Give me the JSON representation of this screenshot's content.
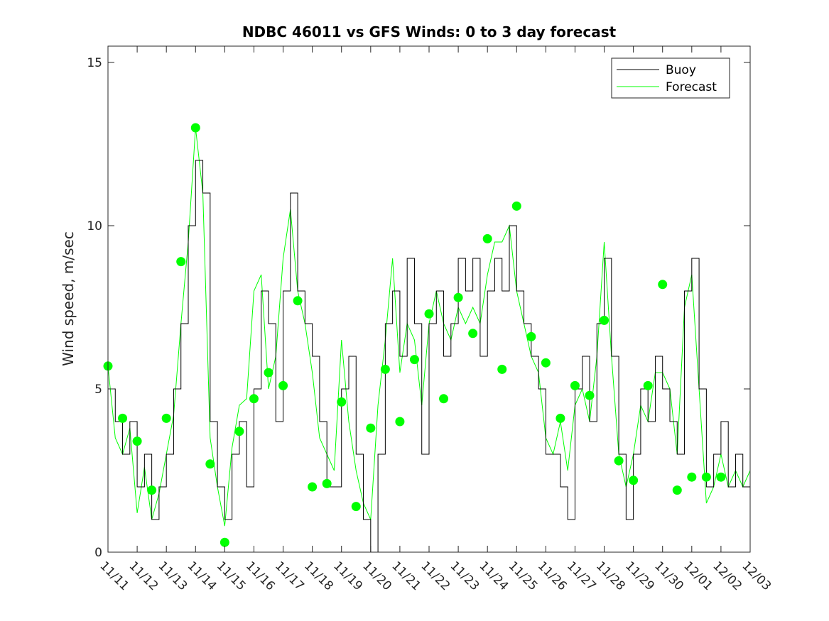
{
  "chart_data": {
    "type": "line",
    "title": "NDBC 46011 vs GFS Winds: 0 to 3 day forecast",
    "xlabel": "",
    "ylabel": "Wind speed, m/sec",
    "ylim": [
      0,
      15.5
    ],
    "yticks": [
      "0",
      "5",
      "10",
      "15"
    ],
    "ytick_values": [
      0,
      5,
      10,
      15
    ],
    "xlim": [
      0,
      22
    ],
    "xticks": [
      "11/11",
      "11/12",
      "11/13",
      "11/14",
      "11/15",
      "11/16",
      "11/17",
      "11/18",
      "11/19",
      "11/20",
      "11/21",
      "11/22",
      "11/23",
      "11/24",
      "11/25",
      "11/26",
      "11/27",
      "11/28",
      "11/29",
      "11/30",
      "12/01",
      "12/02",
      "12/03"
    ],
    "legend": {
      "location": "top-right",
      "entries": [
        "Buoy",
        "Forecast"
      ]
    },
    "colors": {
      "buoy": "#000000",
      "forecast": "#00ff00",
      "axes": "#262626"
    },
    "series": [
      {
        "name": "Buoy",
        "x": [
          0,
          0.25,
          0.5,
          0.75,
          1,
          1.25,
          1.5,
          1.75,
          2,
          2.25,
          2.5,
          2.75,
          3,
          3.25,
          3.5,
          3.75,
          4,
          4.25,
          4.5,
          4.75,
          5,
          5.25,
          5.5,
          5.75,
          6,
          6.25,
          6.5,
          6.75,
          7,
          7.25,
          7.5,
          7.75,
          8,
          8.25,
          8.5,
          8.75,
          9,
          9.25,
          9.5,
          9.75,
          10,
          10.25,
          10.5,
          10.75,
          11,
          11.25,
          11.5,
          11.75,
          12,
          12.25,
          12.5,
          12.75,
          13,
          13.25,
          13.5,
          13.75,
          14,
          14.25,
          14.5,
          14.75,
          15,
          15.25,
          15.5,
          15.75,
          16,
          16.25,
          16.5,
          16.75,
          17,
          17.25,
          17.5,
          17.75,
          18,
          18.25,
          18.5,
          18.75,
          19,
          19.25,
          19.5,
          19.75,
          20,
          20.25,
          20.5,
          20.75,
          21,
          21.25,
          21.5,
          21.75,
          22
        ],
        "values": [
          5,
          4,
          3,
          4,
          2,
          3,
          1,
          2,
          3,
          5,
          7,
          10,
          12,
          11,
          4,
          2,
          1,
          3,
          4,
          2,
          5,
          8,
          7,
          4,
          8,
          11,
          8,
          7,
          6,
          4,
          2,
          2,
          5,
          6,
          3,
          1,
          0,
          3,
          7,
          8,
          6,
          9,
          7,
          3,
          7,
          8,
          6,
          7,
          9,
          8,
          9,
          6,
          8,
          9,
          8,
          10,
          8,
          7,
          6,
          5,
          3,
          3,
          2,
          1,
          5,
          6,
          4,
          7,
          9,
          6,
          3,
          1,
          3,
          5,
          4,
          6,
          5,
          4,
          3,
          8,
          9,
          5,
          2,
          3,
          4,
          2,
          3,
          2,
          2
        ]
      },
      {
        "name": "Forecast",
        "x": [
          0,
          0.25,
          0.5,
          0.75,
          1,
          1.25,
          1.5,
          1.75,
          2,
          2.25,
          2.5,
          2.75,
          3,
          3.25,
          3.5,
          3.75,
          4,
          4.25,
          4.5,
          4.75,
          5,
          5.25,
          5.5,
          5.75,
          6,
          6.25,
          6.5,
          6.75,
          7,
          7.25,
          7.5,
          7.75,
          8,
          8.25,
          8.5,
          8.75,
          9,
          9.25,
          9.5,
          9.75,
          10,
          10.25,
          10.5,
          10.75,
          11,
          11.25,
          11.5,
          11.75,
          12,
          12.25,
          12.5,
          12.75,
          13,
          13.25,
          13.5,
          13.75,
          14,
          14.25,
          14.5,
          14.75,
          15,
          15.25,
          15.5,
          15.75,
          16,
          16.25,
          16.5,
          16.75,
          17,
          17.25,
          17.5,
          17.75,
          18,
          18.25,
          18.5,
          18.75,
          19,
          19.25,
          19.5,
          19.75,
          20,
          20.25,
          20.5,
          20.75,
          21,
          21.25,
          21.5,
          21.75,
          22
        ],
        "values": [
          5.7,
          3.5,
          3.0,
          3.8,
          1.2,
          2.6,
          1.0,
          1.8,
          3.0,
          4.2,
          7.0,
          9.5,
          13.0,
          11.0,
          3.5,
          2.0,
          0.8,
          3.2,
          4.5,
          4.7,
          8.0,
          8.5,
          5.0,
          6.0,
          9.0,
          10.5,
          8.0,
          7.0,
          5.5,
          3.5,
          3.0,
          2.5,
          6.5,
          4.0,
          2.5,
          1.5,
          1.0,
          4.5,
          6.5,
          9.0,
          5.5,
          7.0,
          6.5,
          4.5,
          7.0,
          8.0,
          7.0,
          6.5,
          7.5,
          7.0,
          7.5,
          7.0,
          8.5,
          9.5,
          9.5,
          10.0,
          8.0,
          7.0,
          6.0,
          5.5,
          3.5,
          3.0,
          4.0,
          2.5,
          4.5,
          5.0,
          4.0,
          6.0,
          9.5,
          6.0,
          3.0,
          2.0,
          3.0,
          4.5,
          4.0,
          5.5,
          5.5,
          5.0,
          3.0,
          7.5,
          8.5,
          5.0,
          1.5,
          2.0,
          3.0,
          2.0,
          2.5,
          2.0,
          2.5
        ]
      }
    ],
    "forecast_points": {
      "x": [
        0.0,
        0.5,
        1.0,
        1.5,
        2.0,
        2.5,
        3.0,
        3.5,
        4.0,
        4.5,
        5.0,
        5.5,
        6.0,
        6.5,
        7.0,
        7.5,
        8.0,
        8.5,
        9.0,
        9.5,
        10.0,
        10.5,
        11.0,
        11.5,
        12.0,
        12.5,
        13.0,
        13.5,
        14.0,
        14.5,
        15.0,
        15.5,
        16.0,
        16.5,
        17.0,
        17.5,
        18.0,
        18.5,
        19.0,
        19.5,
        20.0,
        20.5,
        21.0
      ],
      "values": [
        5.7,
        4.1,
        3.4,
        1.9,
        4.1,
        8.9,
        13.0,
        2.7,
        0.3,
        3.7,
        4.7,
        5.5,
        5.1,
        7.7,
        2.0,
        2.1,
        4.6,
        1.4,
        3.8,
        5.6,
        4.0,
        5.9,
        7.3,
        4.7,
        7.8,
        6.7,
        9.6,
        5.6,
        10.6,
        6.6,
        5.8,
        4.1,
        5.1,
        4.8,
        7.1,
        2.8,
        2.2,
        5.1,
        8.2,
        1.9,
        2.3,
        2.3,
        2.3
      ]
    }
  }
}
